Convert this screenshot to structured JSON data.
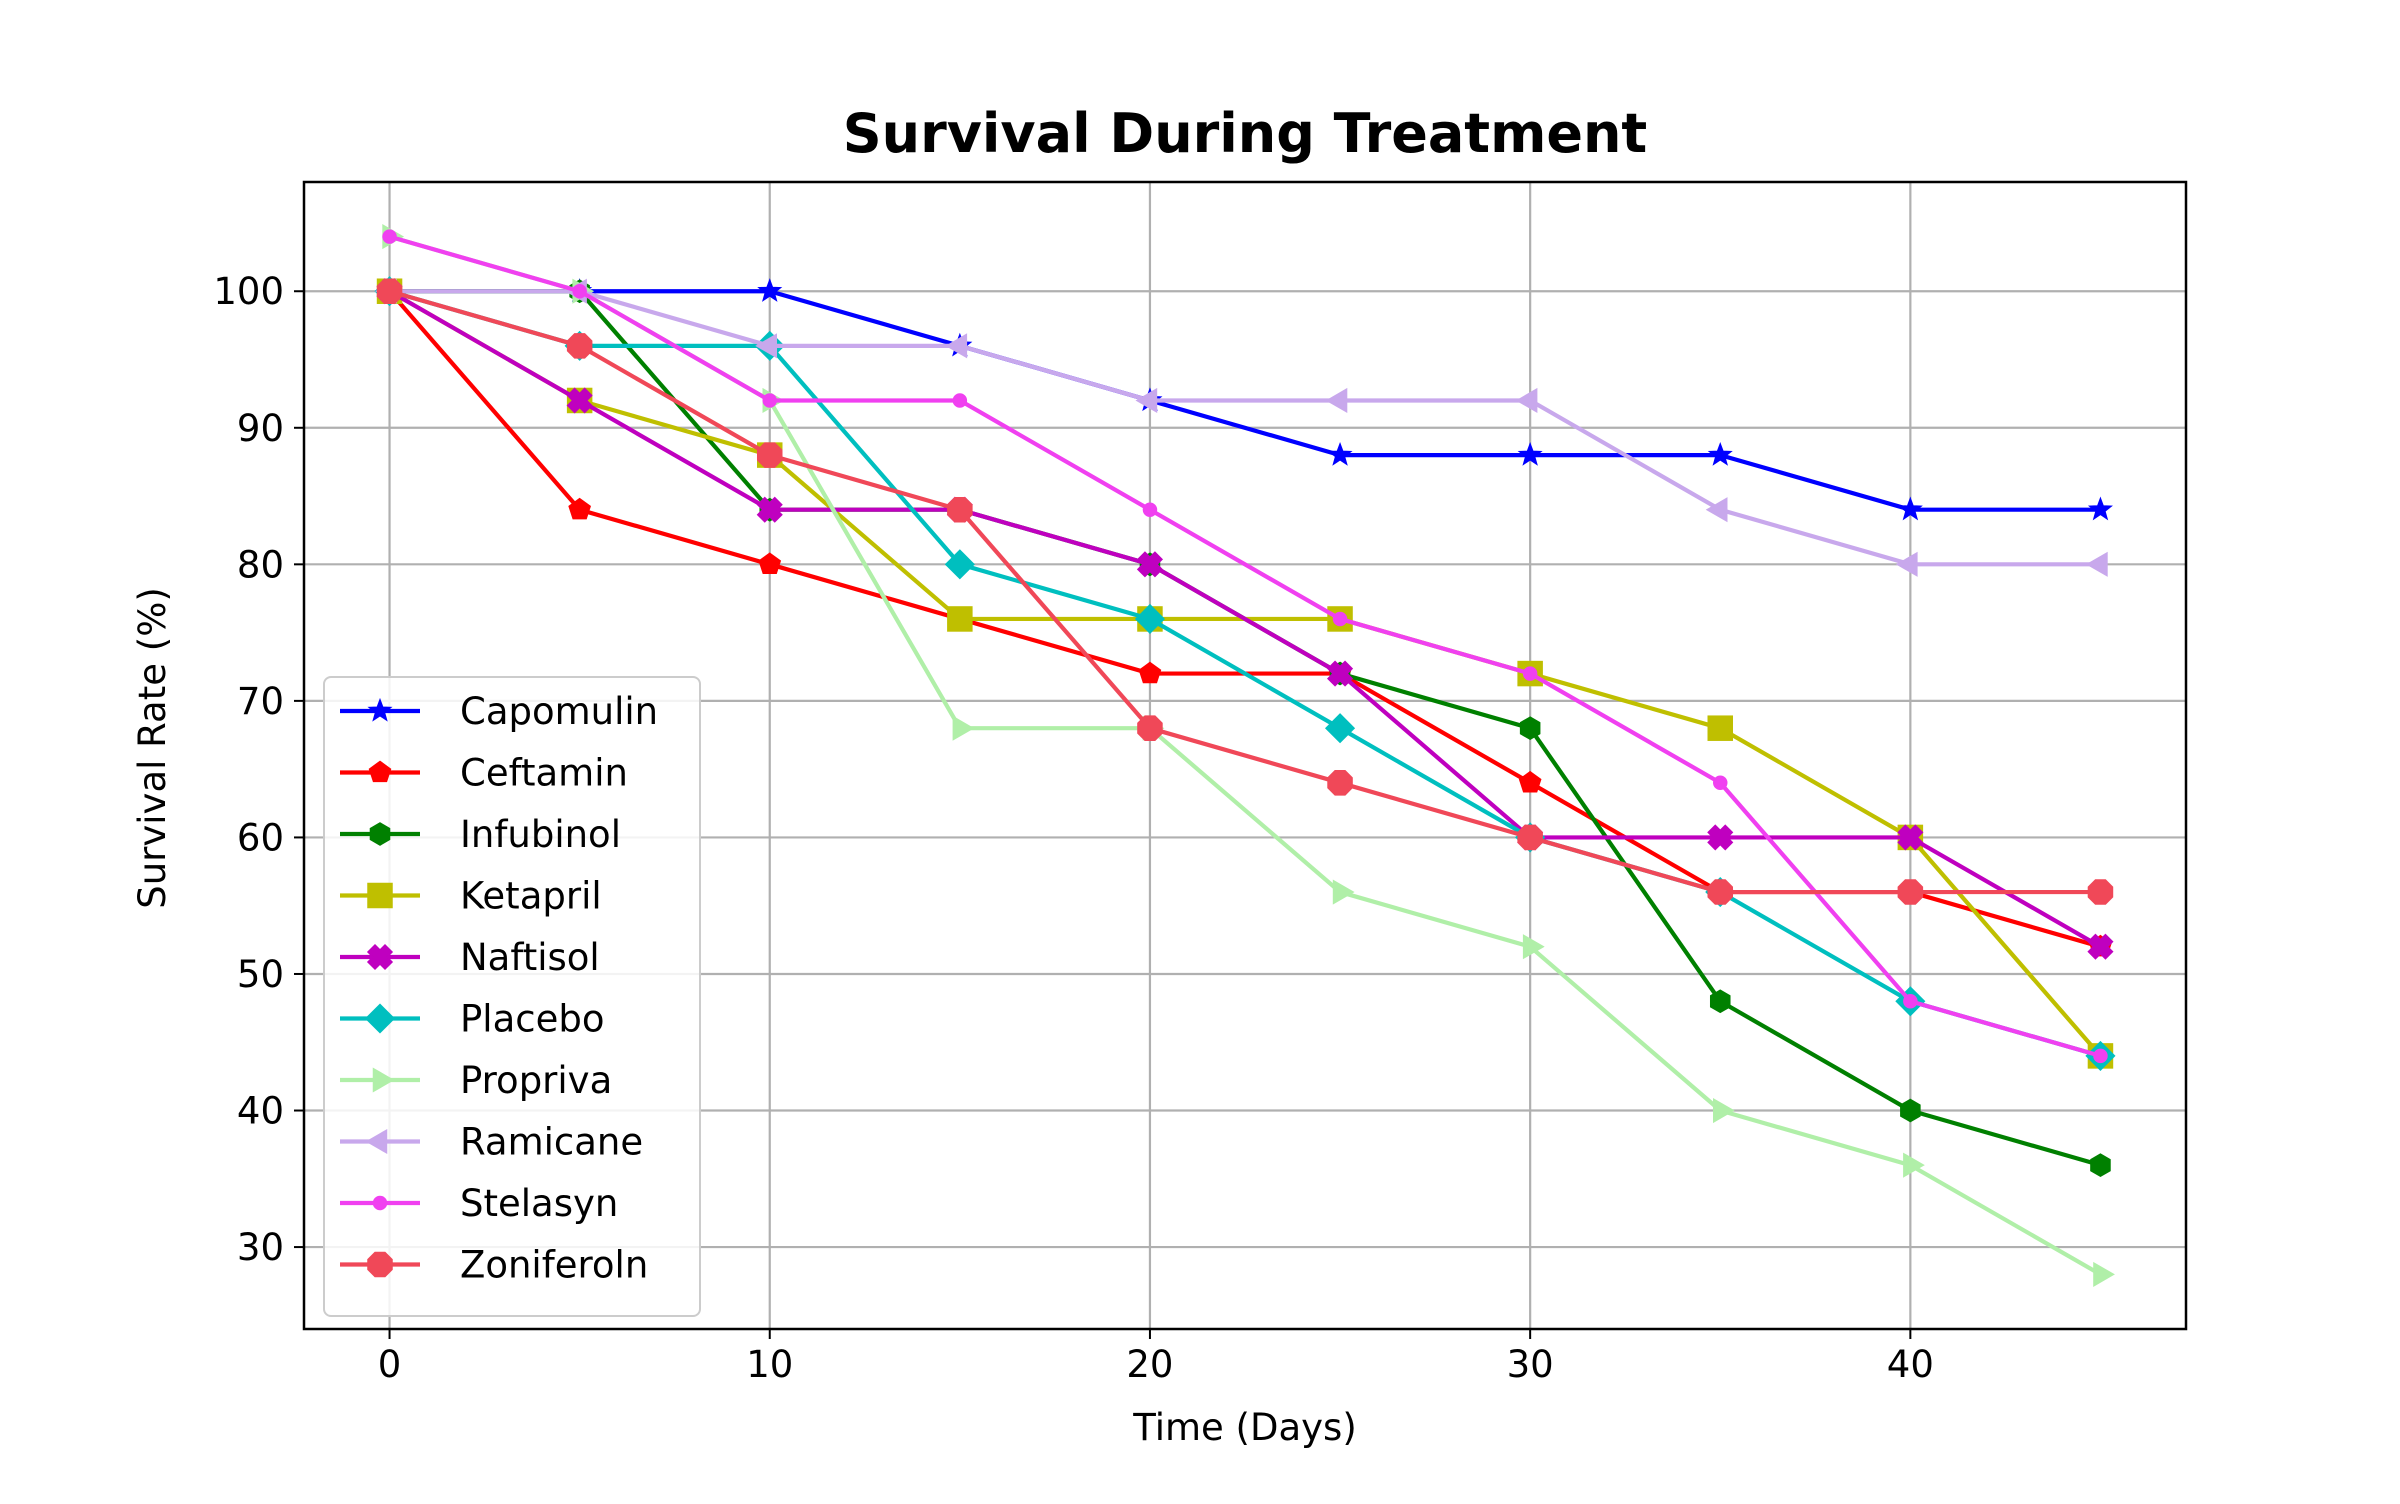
{
  "chart_data": {
    "type": "line",
    "title": "Survival During Treatment",
    "xlabel": "Time (Days)",
    "ylabel": "Survival Rate (%)",
    "xlim": [
      -2.25,
      47.25
    ],
    "ylim": [
      24,
      108
    ],
    "x_ticks": [
      0,
      10,
      20,
      30,
      40
    ],
    "y_ticks": [
      30,
      40,
      50,
      60,
      70,
      80,
      90,
      100
    ],
    "grid": true,
    "legend_position": "lower-left",
    "x": [
      0,
      5,
      10,
      15,
      20,
      25,
      30,
      35,
      40,
      45
    ],
    "series": [
      {
        "name": "Capomulin",
        "color": "#0000ff",
        "marker": "star",
        "values": [
          100,
          100,
          100,
          96,
          92,
          88,
          88,
          88,
          84,
          84
        ]
      },
      {
        "name": "Ceftamin",
        "color": "#ff0000",
        "marker": "pentagon",
        "values": [
          100,
          84,
          80,
          76,
          72,
          72,
          64,
          56,
          56,
          52
        ]
      },
      {
        "name": "Infubinol",
        "color": "#008000",
        "marker": "hexagon",
        "values": [
          100,
          100,
          84,
          84,
          80,
          72,
          68,
          48,
          40,
          36
        ]
      },
      {
        "name": "Ketapril",
        "color": "#bfbf00",
        "marker": "square",
        "values": [
          100,
          92,
          88,
          76,
          76,
          76,
          72,
          68,
          60,
          44
        ]
      },
      {
        "name": "Naftisol",
        "color": "#bf00bf",
        "marker": "x-filled",
        "values": [
          100,
          92,
          84,
          84,
          80,
          72,
          60,
          60,
          60,
          52
        ]
      },
      {
        "name": "Placebo",
        "color": "#00bfbf",
        "marker": "diamond",
        "values": [
          100,
          96,
          96,
          80,
          76,
          68,
          60,
          56,
          48,
          44
        ]
      },
      {
        "name": "Propriva",
        "color": "#b0efa8",
        "marker": "triangle-right",
        "values": [
          104,
          100,
          92,
          68,
          68,
          56,
          52,
          40,
          36,
          28
        ]
      },
      {
        "name": "Ramicane",
        "color": "#c8a8ec",
        "marker": "triangle-left",
        "values": [
          100,
          100,
          96,
          96,
          92,
          92,
          92,
          84,
          80,
          80
        ]
      },
      {
        "name": "Stelasyn",
        "color": "#f040f0",
        "marker": "point",
        "values": [
          104,
          100,
          92,
          92,
          84,
          76,
          72,
          64,
          48,
          44
        ]
      },
      {
        "name": "Zoniferoln",
        "color": "#f04858",
        "marker": "octagon",
        "values": [
          100,
          96,
          88,
          84,
          68,
          64,
          60,
          56,
          56,
          56
        ]
      }
    ]
  }
}
